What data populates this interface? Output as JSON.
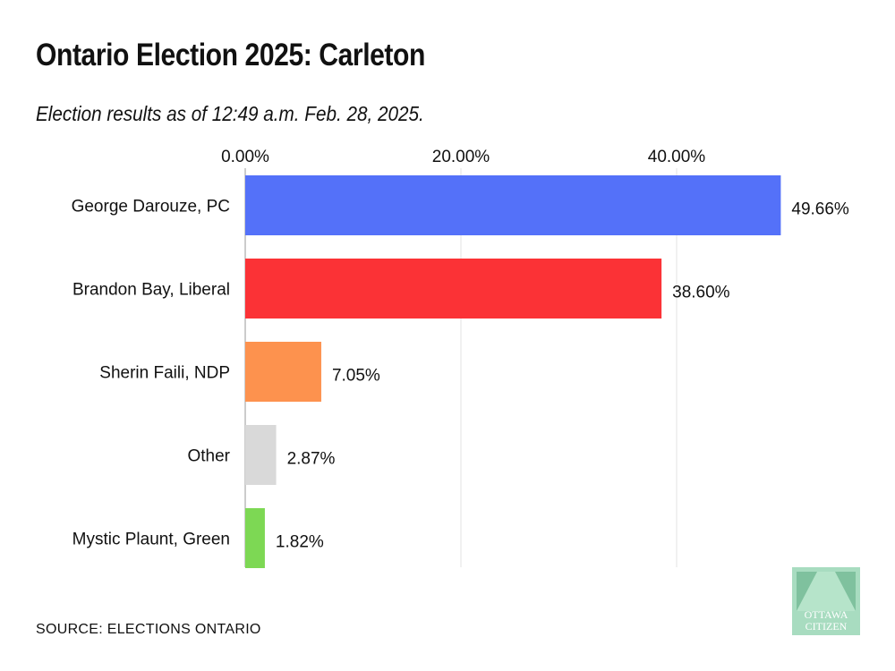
{
  "chart_data": {
    "type": "bar",
    "orientation": "horizontal",
    "title": "Ontario Election 2025: Carleton",
    "subtitle": "Election results as of 12:49 a.m. Feb. 28, 2025.",
    "categories": [
      "George Darouze, PC",
      "Brandon Bay, Liberal",
      "Sherin Faili, NDP",
      "Other",
      "Mystic Plaunt, Green"
    ],
    "values": [
      49.66,
      38.6,
      7.05,
      2.87,
      1.82
    ],
    "data_labels": [
      "49.66%",
      "38.60%",
      "7.05%",
      "2.87%",
      "1.82%"
    ],
    "colors": [
      "#5471f9",
      "#fb3236",
      "#fd924e",
      "#d9d9d9",
      "#7dd854"
    ],
    "xticks": [
      0,
      20,
      40
    ],
    "xtick_labels": [
      "0.00%",
      "20.00%",
      "40.00%"
    ],
    "xlim": [
      0,
      50
    ],
    "xaxis_position": "top",
    "grid": true,
    "legend": "none",
    "xlabel": "",
    "ylabel": ""
  },
  "source": "SOURCE: ELECTIONS ONTARIO",
  "logo": {
    "text": "OTTAWA CITIZEN",
    "colors": [
      "#a8dcc0",
      "#7fc19e"
    ]
  }
}
